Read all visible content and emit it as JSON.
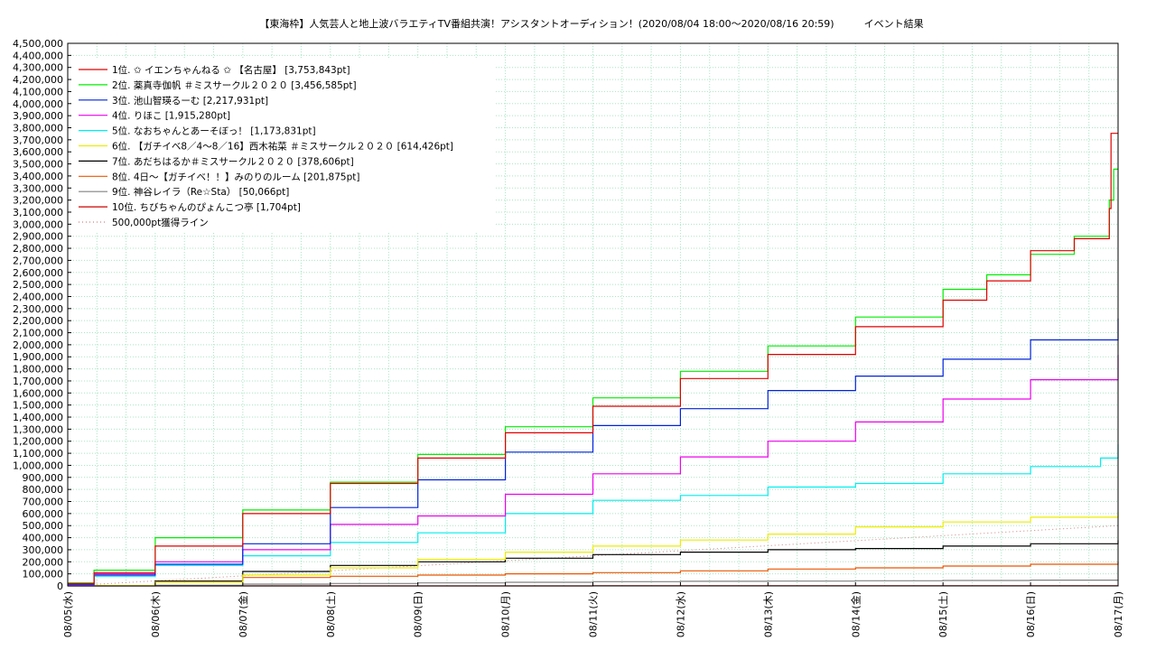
{
  "chart_data": {
    "type": "line",
    "title": "【東海枠】人気芸人と地上波バラエティTV番組共演！アシスタントオーディション！(2020/08/04 18:00〜2020/08/16 20:59)　　　イベント結果",
    "xlabel": "",
    "ylabel": "",
    "x_ticks": [
      "08/05(水)",
      "08/06(木)",
      "08/07(金)",
      "08/08(土)",
      "08/09(日)",
      "08/10(月)",
      "08/11(火)",
      "08/12(水)",
      "08/13(木)",
      "08/14(金)",
      "08/15(土)",
      "08/16(日)",
      "08/17(月)"
    ],
    "ylim": [
      0,
      4500000
    ],
    "y_tick_step": 100000,
    "y_tick_labels": [
      "0",
      "100,000",
      "200,000",
      "300,000",
      "400,000",
      "500,000",
      "600,000",
      "700,000",
      "800,000",
      "900,000",
      "1,000,000",
      "1,100,000",
      "1,200,000",
      "1,300,000",
      "1,400,000",
      "1,500,000",
      "1,600,000",
      "1,700,000",
      "1,800,000",
      "1,900,000",
      "2,000,000",
      "2,100,000",
      "2,200,000",
      "2,300,000",
      "2,400,000",
      "2,500,000",
      "2,600,000",
      "2,700,000",
      "2,800,000",
      "2,900,000",
      "3,000,000",
      "3,100,000",
      "3,200,000",
      "3,300,000",
      "3,400,000",
      "3,500,000",
      "3,600,000",
      "3,700,000",
      "3,800,000",
      "3,900,000",
      "4,000,000",
      "4,100,000",
      "4,200,000",
      "4,300,000",
      "4,400,000",
      "4,500,000"
    ],
    "grid": true,
    "legend_position": "top-left",
    "reference_line": {
      "name": "500,000pt獲得ライン",
      "color": "#d08080",
      "from": [
        0,
        0
      ],
      "to": [
        12,
        500000
      ]
    },
    "series": [
      {
        "name": "1位. ✩ イエンちゃんねる ✩ 【名古屋】 [3,753,843pt]",
        "color": "#e00000",
        "x": [
          0,
          0.3,
          1,
          2,
          3,
          4,
          5,
          6,
          7,
          8,
          9,
          10,
          10.5,
          11,
          11.5,
          11.9,
          11.92,
          12
        ],
        "y": [
          20000,
          110000,
          330000,
          600000,
          850000,
          1060000,
          1270000,
          1490000,
          1720000,
          1920000,
          2150000,
          2370000,
          2530000,
          2780000,
          2880000,
          3130000,
          3753843,
          3753843
        ]
      },
      {
        "name": "2位. 薬真寺伽帆 ＃ミスサークル２０２０ [3,456,585pt]",
        "color": "#00ee00",
        "x": [
          0,
          0.3,
          1,
          2,
          3,
          4,
          5,
          6,
          7,
          8,
          9,
          10,
          10.5,
          11,
          11.5,
          11.9,
          11.95,
          12
        ],
        "y": [
          25000,
          130000,
          400000,
          630000,
          860000,
          1090000,
          1320000,
          1560000,
          1780000,
          1990000,
          2230000,
          2460000,
          2580000,
          2750000,
          2900000,
          3200000,
          3456585,
          3456585
        ]
      },
      {
        "name": "3位. 池山智瑛るーむ [2,217,931pt]",
        "color": "#0022dd",
        "x": [
          0,
          0.3,
          1,
          2,
          3,
          4,
          5,
          6,
          7,
          8,
          9,
          10,
          11,
          12
        ],
        "y": [
          15000,
          90000,
          180000,
          350000,
          650000,
          880000,
          1110000,
          1330000,
          1470000,
          1620000,
          1740000,
          1880000,
          2040000,
          2217931
        ]
      },
      {
        "name": "4位. りほこ [1,915,280pt]",
        "color": "#ee00ee",
        "x": [
          0,
          0.3,
          1,
          2,
          3,
          4,
          5,
          6,
          7,
          8,
          9,
          10,
          11,
          12
        ],
        "y": [
          10000,
          100000,
          200000,
          300000,
          510000,
          580000,
          760000,
          930000,
          1070000,
          1200000,
          1360000,
          1550000,
          1710000,
          1915280
        ]
      },
      {
        "name": "5位. なおちゃんとあーそぼっ！ [1,173,831pt]",
        "color": "#00eeee",
        "x": [
          0,
          0.3,
          1,
          2,
          3,
          4,
          5,
          6,
          7,
          8,
          9,
          10,
          11,
          11.8,
          12
        ],
        "y": [
          8000,
          80000,
          170000,
          250000,
          360000,
          440000,
          600000,
          710000,
          750000,
          820000,
          850000,
          930000,
          990000,
          1060000,
          1173831
        ]
      },
      {
        "name": "6位. 【ガチイベ8／4〜8／16】西木祐菜 ＃ミスサークル２０２０ [614,426pt]",
        "color": "#eeee00",
        "x": [
          0,
          1,
          2,
          3,
          4,
          5,
          6,
          7,
          8,
          9,
          10,
          11,
          12
        ],
        "y": [
          3000,
          30000,
          90000,
          150000,
          220000,
          280000,
          330000,
          380000,
          430000,
          490000,
          530000,
          570000,
          614426
        ]
      },
      {
        "name": "7位. あだちはるか＃ミスサークル２０２０ [378,606pt]",
        "color": "#000000",
        "x": [
          0,
          1,
          2,
          3,
          4,
          5,
          6,
          7,
          8,
          9,
          10,
          11,
          12
        ],
        "y": [
          2000,
          40000,
          120000,
          170000,
          200000,
          230000,
          260000,
          280000,
          300000,
          310000,
          330000,
          350000,
          378606
        ]
      },
      {
        "name": "8位. 4日〜【ガチイベ！！】みのりのルーム [201,875pt]",
        "color": "#ee5500",
        "x": [
          0,
          1,
          2,
          3,
          4,
          5,
          6,
          7,
          8,
          9,
          10,
          11,
          12
        ],
        "y": [
          1000,
          40000,
          70000,
          80000,
          90000,
          100000,
          110000,
          125000,
          140000,
          150000,
          165000,
          180000,
          201875
        ]
      },
      {
        "name": "9位. 神谷レイラ（Re☆Sta） [50,066pt]",
        "color": "#808080",
        "x": [
          0,
          1,
          2,
          3,
          4,
          5,
          6,
          7,
          8,
          9,
          10,
          11,
          12
        ],
        "y": [
          0,
          5000,
          15000,
          20000,
          25000,
          30000,
          35000,
          38000,
          40000,
          43000,
          45000,
          48000,
          50066
        ]
      },
      {
        "name": "10位. ちびちゃんのぴょんこつ亭 [1,704pt]",
        "color": "#cc0000",
        "x": [
          0,
          6,
          12
        ],
        "y": [
          0,
          800,
          1704
        ]
      }
    ]
  }
}
